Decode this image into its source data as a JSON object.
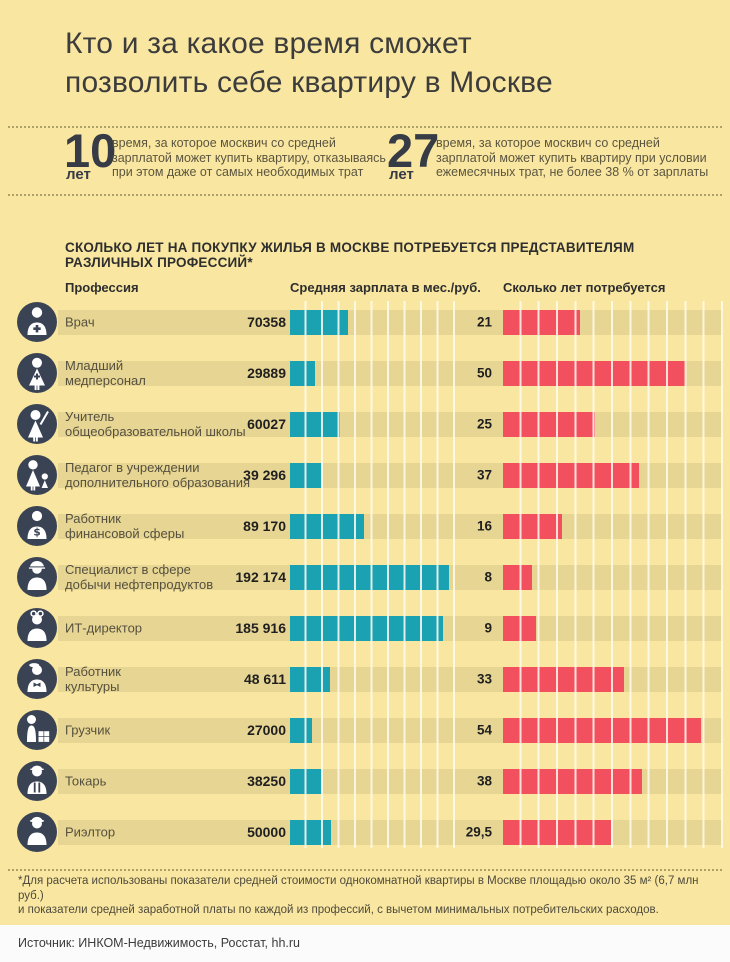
{
  "title": {
    "line1": "Кто и за какое время сможет",
    "line2": "позволить себе квартиру в Москве"
  },
  "stats": [
    {
      "value": "10",
      "unit": "лет",
      "desc": "время, за которое москвич со средней\nзарплатой может купить квартиру, отказываясь\nпри этом даже от самых необходимых трат"
    },
    {
      "value": "27",
      "unit": "лет",
      "desc": "время, за которое москвич со средней\nзарплатой может купить квартиру при условии\nежемесячных трат, не более 38 % от зарплаты"
    }
  ],
  "section_heading": "СКОЛЬКО ЛЕТ НА ПОКУПКУ ЖИЛЬЯ В МОСКВЕ ПОТРЕБУЕТСЯ ПРЕДСТАВИТЕЛЯМ РАЗЛИЧНЫХ ПРОФЕССИЙ*",
  "chart_data": {
    "type": "bar",
    "columns": {
      "profession": "Профессия",
      "salary": "Средняя зарплата в мес./руб.",
      "years": "Сколько лет потребуется"
    },
    "salary_axis": {
      "max": 200000,
      "cells": 10,
      "rub_per_cell": 20000
    },
    "years_axis": {
      "max": 60,
      "cells": 12,
      "years_per_cell": 5
    },
    "colors": {
      "salary_bar": "#1AA2B2",
      "years_bar": "#F3505F",
      "track": "#E7D693",
      "background": "#F9E7A1",
      "icon_circle": "#3A4354"
    },
    "rows": [
      {
        "icon": "doctor-icon",
        "label": "Врач",
        "salary_display": "70358",
        "salary": 70358,
        "years_display": "21",
        "years": 21
      },
      {
        "icon": "nurse-icon",
        "label": "Младший\nмедперсонал",
        "salary_display": "29889",
        "salary": 29889,
        "years_display": "50",
        "years": 50
      },
      {
        "icon": "teacher-icon",
        "label": "Учитель\nобщеобразовательной школы",
        "salary_display": "60027",
        "salary": 60027,
        "years_display": "25",
        "years": 25
      },
      {
        "icon": "pedagog-icon",
        "label": "Педагог в учреждении\nдополнительного образования",
        "salary_display": "39 296",
        "salary": 39296,
        "years_display": "37",
        "years": 37
      },
      {
        "icon": "finance-icon",
        "label": "Работник\nфинансовой сферы",
        "salary_display": "89 170",
        "salary": 89170,
        "years_display": "16",
        "years": 16
      },
      {
        "icon": "oil-worker-icon",
        "label": "Специалист в сфере\nдобычи нефтепродуктов",
        "salary_display": "192 174",
        "salary": 192174,
        "years_display": "8",
        "years": 8
      },
      {
        "icon": "it-director-icon",
        "label": "ИТ-директор",
        "salary_display": "185 916",
        "salary": 185916,
        "years_display": "9",
        "years": 9
      },
      {
        "icon": "culture-icon",
        "label": "Работник\nкультуры",
        "salary_display": "48 611",
        "salary": 48611,
        "years_display": "33",
        "years": 33
      },
      {
        "icon": "loader-icon",
        "label": "Грузчик",
        "salary_display": "27000",
        "salary": 27000,
        "years_display": "54",
        "years": 54
      },
      {
        "icon": "turner-icon",
        "label": "Токарь",
        "salary_display": "38250",
        "salary": 38250,
        "years_display": "38",
        "years": 38
      },
      {
        "icon": "realtor-icon",
        "label": "Риэлтор",
        "salary_display": "50000",
        "salary": 50000,
        "years_display": "29,5",
        "years": 29.5
      }
    ]
  },
  "footnote": "*Для расчета использованы показатели средней стоимости однокомнатной квартиры в Москве площадью около 35 м² (6,7 млн руб.)\n и показатели средней заработной платы по каждой из профессий, с вычетом минимальных потребительских расходов.",
  "source": "Источник: ИНКОМ-Недвижимость, Росстат, hh.ru"
}
